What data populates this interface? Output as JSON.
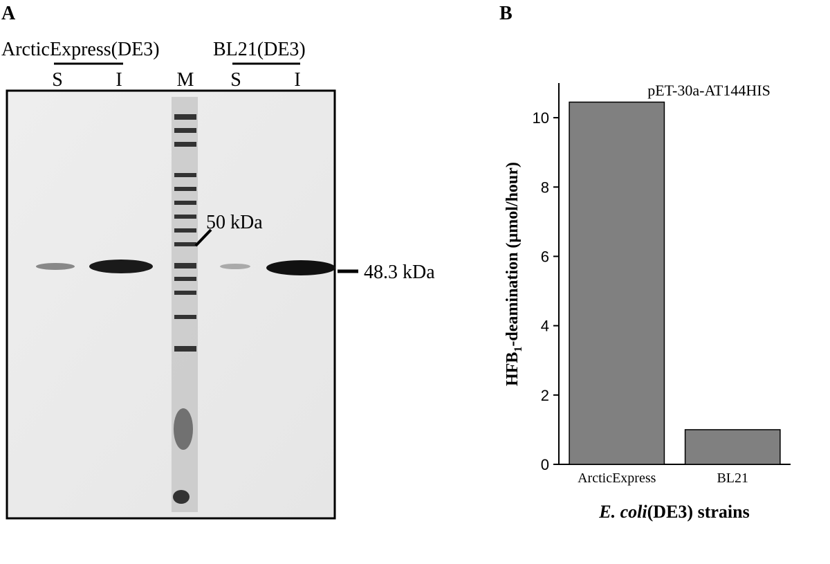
{
  "panels": {
    "a": "A",
    "b": "B"
  },
  "gel": {
    "strains": [
      "ArcticExpress(DE3)",
      "BL21(DE3)"
    ],
    "lanes": [
      "S",
      "I",
      "M",
      "S",
      "I"
    ],
    "markers": [
      "50 kDa",
      "48.3 kDa"
    ]
  },
  "chart_data": {
    "type": "bar",
    "annotation": "pET-30a-AT144HIS",
    "categories": [
      "ArcticExpress",
      "BL21"
    ],
    "values": [
      10.45,
      1.0
    ],
    "color": "#808080",
    "ylim": [
      0,
      11
    ],
    "yticks": [
      0,
      2,
      4,
      6,
      8,
      10
    ],
    "ylabel": [
      "HFB",
      "1",
      "-deamination (µmol/hour)"
    ],
    "xlabel": [
      "E. coli",
      "(DE3) strains"
    ]
  }
}
